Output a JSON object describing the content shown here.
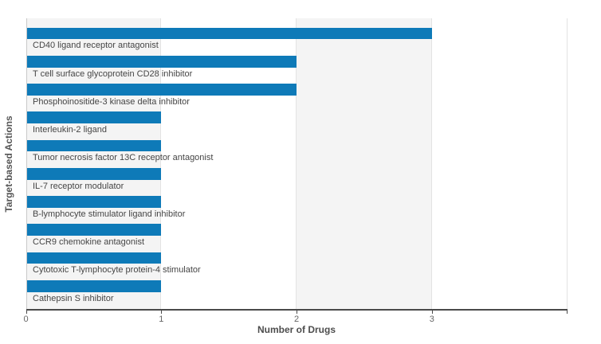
{
  "chart_data": {
    "type": "bar",
    "orientation": "horizontal",
    "title": "",
    "xlabel": "Number of Drugs",
    "ylabel": "Target-based Actions",
    "categories": [
      "CD40 ligand receptor antagonist",
      "T cell surface glycoprotein CD28 inhibitor",
      "Phosphoinositide-3 kinase delta inhibitor",
      "Interleukin-2 ligand",
      "Tumor necrosis factor 13C receptor antagonist",
      "IL-7 receptor modulator",
      "B-lymphocyte stimulator ligand inhibitor",
      "CCR9 chemokine antagonist",
      "Cytotoxic T-lymphocyte protein-4 stimulator",
      "Cathepsin S inhibitor"
    ],
    "series": [
      {
        "name": "Number of Drugs",
        "values": [
          3,
          2,
          2,
          1,
          1,
          1,
          1,
          1,
          1,
          1
        ]
      }
    ],
    "xlim": [
      0,
      4
    ],
    "x_ticks": [
      0,
      1,
      2,
      3
    ],
    "grid": "vertical unit gridlines with alternating background bands",
    "legend": "none",
    "colors": {
      "bar": "#0e7ab8",
      "band_odd": "#f4f4f4",
      "band_even": "#ffffff",
      "gridline": "#e3e3e3",
      "axis_line": "#4a4a4a",
      "y_axis_line": "#c9c9c9",
      "tick_label": "#666666",
      "category_label": "#454545",
      "axis_title": "#4d4d4d"
    }
  }
}
